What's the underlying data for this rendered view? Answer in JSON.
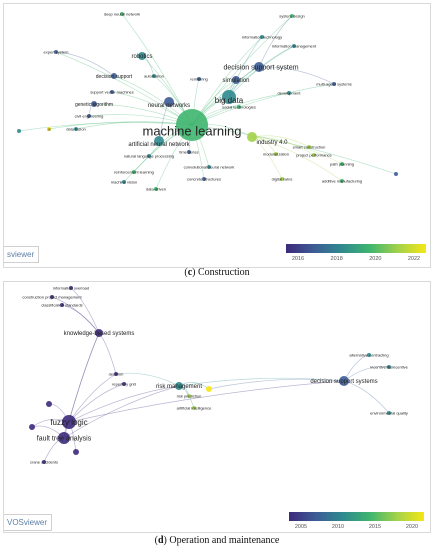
{
  "captions": {
    "c": {
      "letter": "c",
      "text": " Construction"
    },
    "d": {
      "letter": "d",
      "text": " Operation and maintenance"
    }
  },
  "logo": {
    "c": "sviewer",
    "d": "VOSviewer"
  },
  "colors": {
    "scale": [
      "#3d2a7c",
      "#3d5c95",
      "#2f8a8e",
      "#3fb56f",
      "#a3d24a",
      "#f6e614"
    ],
    "link": "#9fb3d8"
  },
  "legend_c": {
    "ticks": [
      "2016",
      "2018",
      "2020",
      "2022"
    ]
  },
  "legend_d": {
    "ticks": [
      "2005",
      "2010",
      "2015",
      "2020"
    ]
  },
  "network_c": {
    "nodes": [
      {
        "id": "ml",
        "label": "machine learning",
        "c": 3,
        "r": 16,
        "fs": 13
      },
      {
        "id": "bd",
        "label": "big data",
        "c": 2,
        "r": 7,
        "fs": 8
      },
      {
        "id": "dss",
        "label": "decision support system",
        "c": 1,
        "r": 5,
        "fs": 7
      },
      {
        "id": "ann",
        "label": "artificial neural network",
        "c": 2,
        "r": 5,
        "fs": 6
      },
      {
        "id": "nn",
        "label": "neural networks",
        "c": 1,
        "r": 5,
        "fs": 6
      },
      {
        "id": "rob",
        "label": "robotics",
        "c": 2,
        "r": 4,
        "fs": 6
      },
      {
        "id": "sim",
        "label": "simulation",
        "c": 1,
        "r": 4,
        "fs": 6
      },
      {
        "id": "i40",
        "label": "industry 4.0",
        "c": 4,
        "r": 5,
        "fs": 6
      },
      {
        "id": "ds",
        "label": "decision support",
        "c": 1,
        "r": 3,
        "fs": 5
      },
      {
        "id": "ga",
        "label": "genetic algorithm",
        "c": 1,
        "r": 3,
        "fs": 5
      },
      {
        "id": "dnn",
        "label": "deep neural network",
        "c": 3,
        "r": 2,
        "fs": 4
      },
      {
        "id": "sd",
        "label": "system design",
        "c": 3,
        "r": 2,
        "fs": 4
      },
      {
        "id": "it",
        "label": "information technology",
        "c": 2,
        "r": 2,
        "fs": 4
      },
      {
        "id": "im",
        "label": "information management",
        "c": 2,
        "r": 2,
        "fs": 4
      },
      {
        "id": "es",
        "label": "expert system",
        "c": 1,
        "r": 2,
        "fs": 4
      },
      {
        "id": "auto",
        "label": "automation",
        "c": 2,
        "r": 2,
        "fs": 4
      },
      {
        "id": "rem",
        "label": "reminiring",
        "c": 1,
        "r": 2,
        "fs": 4
      },
      {
        "id": "svm",
        "label": "support vector machines",
        "c": 1,
        "r": 2,
        "fs": 4
      },
      {
        "id": "ce",
        "label": "civil engineering",
        "c": 1,
        "r": 2,
        "fs": 4
      },
      {
        "id": "dfus",
        "label": "data fusion",
        "c": 2,
        "r": 2,
        "fs": 4
      },
      {
        "id": "ai",
        "label": "ai",
        "c": 5,
        "r": 2,
        "fs": 4
      },
      {
        "id": "dev",
        "label": "development",
        "c": 2,
        "r": 2,
        "fs": 4
      },
      {
        "id": "mas",
        "label": "multi-agent systems",
        "c": 1,
        "r": 2,
        "fs": 4
      },
      {
        "id": "st",
        "label": "social technologies",
        "c": 3,
        "r": 2,
        "fs": 4
      },
      {
        "id": "mod",
        "label": "modularization",
        "c": 4,
        "r": 2,
        "fs": 4
      },
      {
        "id": "sc",
        "label": "smart construction",
        "c": 4,
        "r": 2,
        "fs": 4
      },
      {
        "id": "pp",
        "label": "project performance",
        "c": 4,
        "r": 2,
        "fs": 4
      },
      {
        "id": "path",
        "label": "path planning",
        "c": 3,
        "r": 2,
        "fs": 4
      },
      {
        "id": "am",
        "label": "additive manufacturing",
        "c": 3,
        "r": 2,
        "fs": 4
      },
      {
        "id": "dt",
        "label": "digital twins",
        "c": 4,
        "r": 2,
        "fs": 4
      },
      {
        "id": "ts",
        "label": "time series",
        "c": 1,
        "r": 2,
        "fs": 4
      },
      {
        "id": "nlp",
        "label": "natural language processing",
        "c": 2,
        "r": 2,
        "fs": 4
      },
      {
        "id": "cnn",
        "label": "convolutional neural network",
        "c": 2,
        "r": 2,
        "fs": 4
      },
      {
        "id": "rl",
        "label": "reinforcement learning",
        "c": 3,
        "r": 2,
        "fs": 4
      },
      {
        "id": "cs",
        "label": "concrete structures",
        "c": 1,
        "r": 2,
        "fs": 4
      },
      {
        "id": "mv",
        "label": "machine vision",
        "c": 2,
        "r": 2,
        "fs": 4
      },
      {
        "id": "dd",
        "label": "data-driven",
        "c": 3,
        "r": 2,
        "fs": 4
      },
      {
        "id": "e1",
        "label": "",
        "c": 2,
        "r": 2,
        "fs": 4
      },
      {
        "id": "e2",
        "label": "",
        "c": 1,
        "r": 2,
        "fs": 4
      }
    ],
    "links": [
      [
        "ml",
        "bd"
      ],
      [
        "ml",
        "dss"
      ],
      [
        "ml",
        "ann"
      ],
      [
        "ml",
        "nn"
      ],
      [
        "ml",
        "rob"
      ],
      [
        "ml",
        "sim"
      ],
      [
        "ml",
        "i40"
      ],
      [
        "ml",
        "ds"
      ],
      [
        "ml",
        "ga"
      ],
      [
        "ml",
        "dnn"
      ],
      [
        "ml",
        "sd"
      ],
      [
        "ml",
        "it"
      ],
      [
        "ml",
        "im"
      ],
      [
        "ml",
        "es"
      ],
      [
        "ml",
        "auto"
      ],
      [
        "ml",
        "svm"
      ],
      [
        "ml",
        "ce"
      ],
      [
        "ml",
        "dfus"
      ],
      [
        "ml",
        "ai"
      ],
      [
        "ml",
        "dev"
      ],
      [
        "ml",
        "mas"
      ],
      [
        "ml",
        "st"
      ],
      [
        "ml",
        "ts"
      ],
      [
        "ml",
        "nlp"
      ],
      [
        "ml",
        "cnn"
      ],
      [
        "ml",
        "rl"
      ],
      [
        "ml",
        "cs"
      ],
      [
        "ml",
        "mv"
      ],
      [
        "ml",
        "dd"
      ],
      [
        "ml",
        "e1"
      ],
      [
        "ml",
        "e2"
      ],
      [
        "ml",
        "rem"
      ],
      [
        "i40",
        "mod"
      ],
      [
        "i40",
        "sc"
      ],
      [
        "i40",
        "pp"
      ],
      [
        "i40",
        "path"
      ],
      [
        "i40",
        "am"
      ],
      [
        "i40",
        "dt"
      ],
      [
        "bd",
        "dss"
      ],
      [
        "bd",
        "sim"
      ],
      [
        "bd",
        "it"
      ],
      [
        "bd",
        "im"
      ],
      [
        "dss",
        "sd"
      ],
      [
        "dss",
        "mas"
      ],
      [
        "nn",
        "ann"
      ],
      [
        "rob",
        "auto"
      ],
      [
        "ds",
        "es"
      ],
      [
        "ga",
        "ce"
      ]
    ]
  },
  "network_d": {
    "nodes": [
      {
        "id": "kbs",
        "label": "knowledge-based systems",
        "c": 0,
        "r": 4,
        "fs": 6
      },
      {
        "id": "fl",
        "label": "fuzzy logic",
        "c": 0,
        "r": 7,
        "fs": 8
      },
      {
        "id": "fta",
        "label": "fault tree analysis",
        "c": 0,
        "r": 6,
        "fs": 7
      },
      {
        "id": "rm",
        "label": "risk management",
        "c": 2,
        "r": 4,
        "fs": 6
      },
      {
        "id": "dss2",
        "label": "decision support systems",
        "c": 1,
        "r": 5,
        "fs": 6
      },
      {
        "id": "io",
        "label": "information overload",
        "c": 0,
        "r": 2,
        "fs": 4
      },
      {
        "id": "cpm",
        "label": "construction project management",
        "c": 0,
        "r": 2,
        "fs": 4
      },
      {
        "id": "cls",
        "label": "classification standards",
        "c": 0,
        "r": 2,
        "fs": 4
      },
      {
        "id": "dec",
        "label": "decision",
        "c": 0,
        "r": 2,
        "fs": 4
      },
      {
        "id": "rg",
        "label": "repertory grid",
        "c": 0,
        "r": 2,
        "fs": 4
      },
      {
        "id": "rp",
        "label": "risk prediction",
        "c": 4,
        "r": 2,
        "fs": 4
      },
      {
        "id": "ai2",
        "label": "artificial intelligence",
        "c": 4,
        "r": 2,
        "fs": 4
      },
      {
        "id": "ac",
        "label": "alternative contracting",
        "c": 2,
        "r": 2,
        "fs": 4
      },
      {
        "id": "ii",
        "label": "incentive/disincentive",
        "c": 2,
        "r": 2,
        "fs": 4
      },
      {
        "id": "eq",
        "label": "environmental quality",
        "c": 2,
        "r": 2,
        "fs": 4
      },
      {
        "id": "ca",
        "label": "crane accidents",
        "c": 0,
        "r": 2,
        "fs": 4
      },
      {
        "id": "yel",
        "label": "",
        "c": 5,
        "r": 3,
        "fs": 4
      },
      {
        "id": "f1",
        "label": "",
        "c": 0,
        "r": 3,
        "fs": 4
      },
      {
        "id": "f2",
        "label": "",
        "c": 0,
        "r": 3,
        "fs": 4
      },
      {
        "id": "f3",
        "label": "",
        "c": 0,
        "r": 3,
        "fs": 4
      }
    ],
    "links": [
      [
        "kbs",
        "fl"
      ],
      [
        "kbs",
        "io"
      ],
      [
        "kbs",
        "cpm"
      ],
      [
        "kbs",
        "cls"
      ],
      [
        "kbs",
        "fta"
      ],
      [
        "kbs",
        "dec"
      ],
      [
        "fl",
        "fta"
      ],
      [
        "fl",
        "rm"
      ],
      [
        "fl",
        "dec"
      ],
      [
        "fl",
        "rg"
      ],
      [
        "fl",
        "dss2"
      ],
      [
        "fl",
        "f1"
      ],
      [
        "fl",
        "f2"
      ],
      [
        "fl",
        "f3"
      ],
      [
        "fta",
        "ca"
      ],
      [
        "fta",
        "f2"
      ],
      [
        "fta",
        "rm"
      ],
      [
        "rm",
        "rp"
      ],
      [
        "rm",
        "ai2"
      ],
      [
        "rm",
        "yel"
      ],
      [
        "rm",
        "dss2"
      ],
      [
        "rm",
        "dec"
      ],
      [
        "dss2",
        "ac"
      ],
      [
        "dss2",
        "ii"
      ],
      [
        "dss2",
        "eq"
      ],
      [
        "dss2",
        "yel"
      ]
    ]
  }
}
